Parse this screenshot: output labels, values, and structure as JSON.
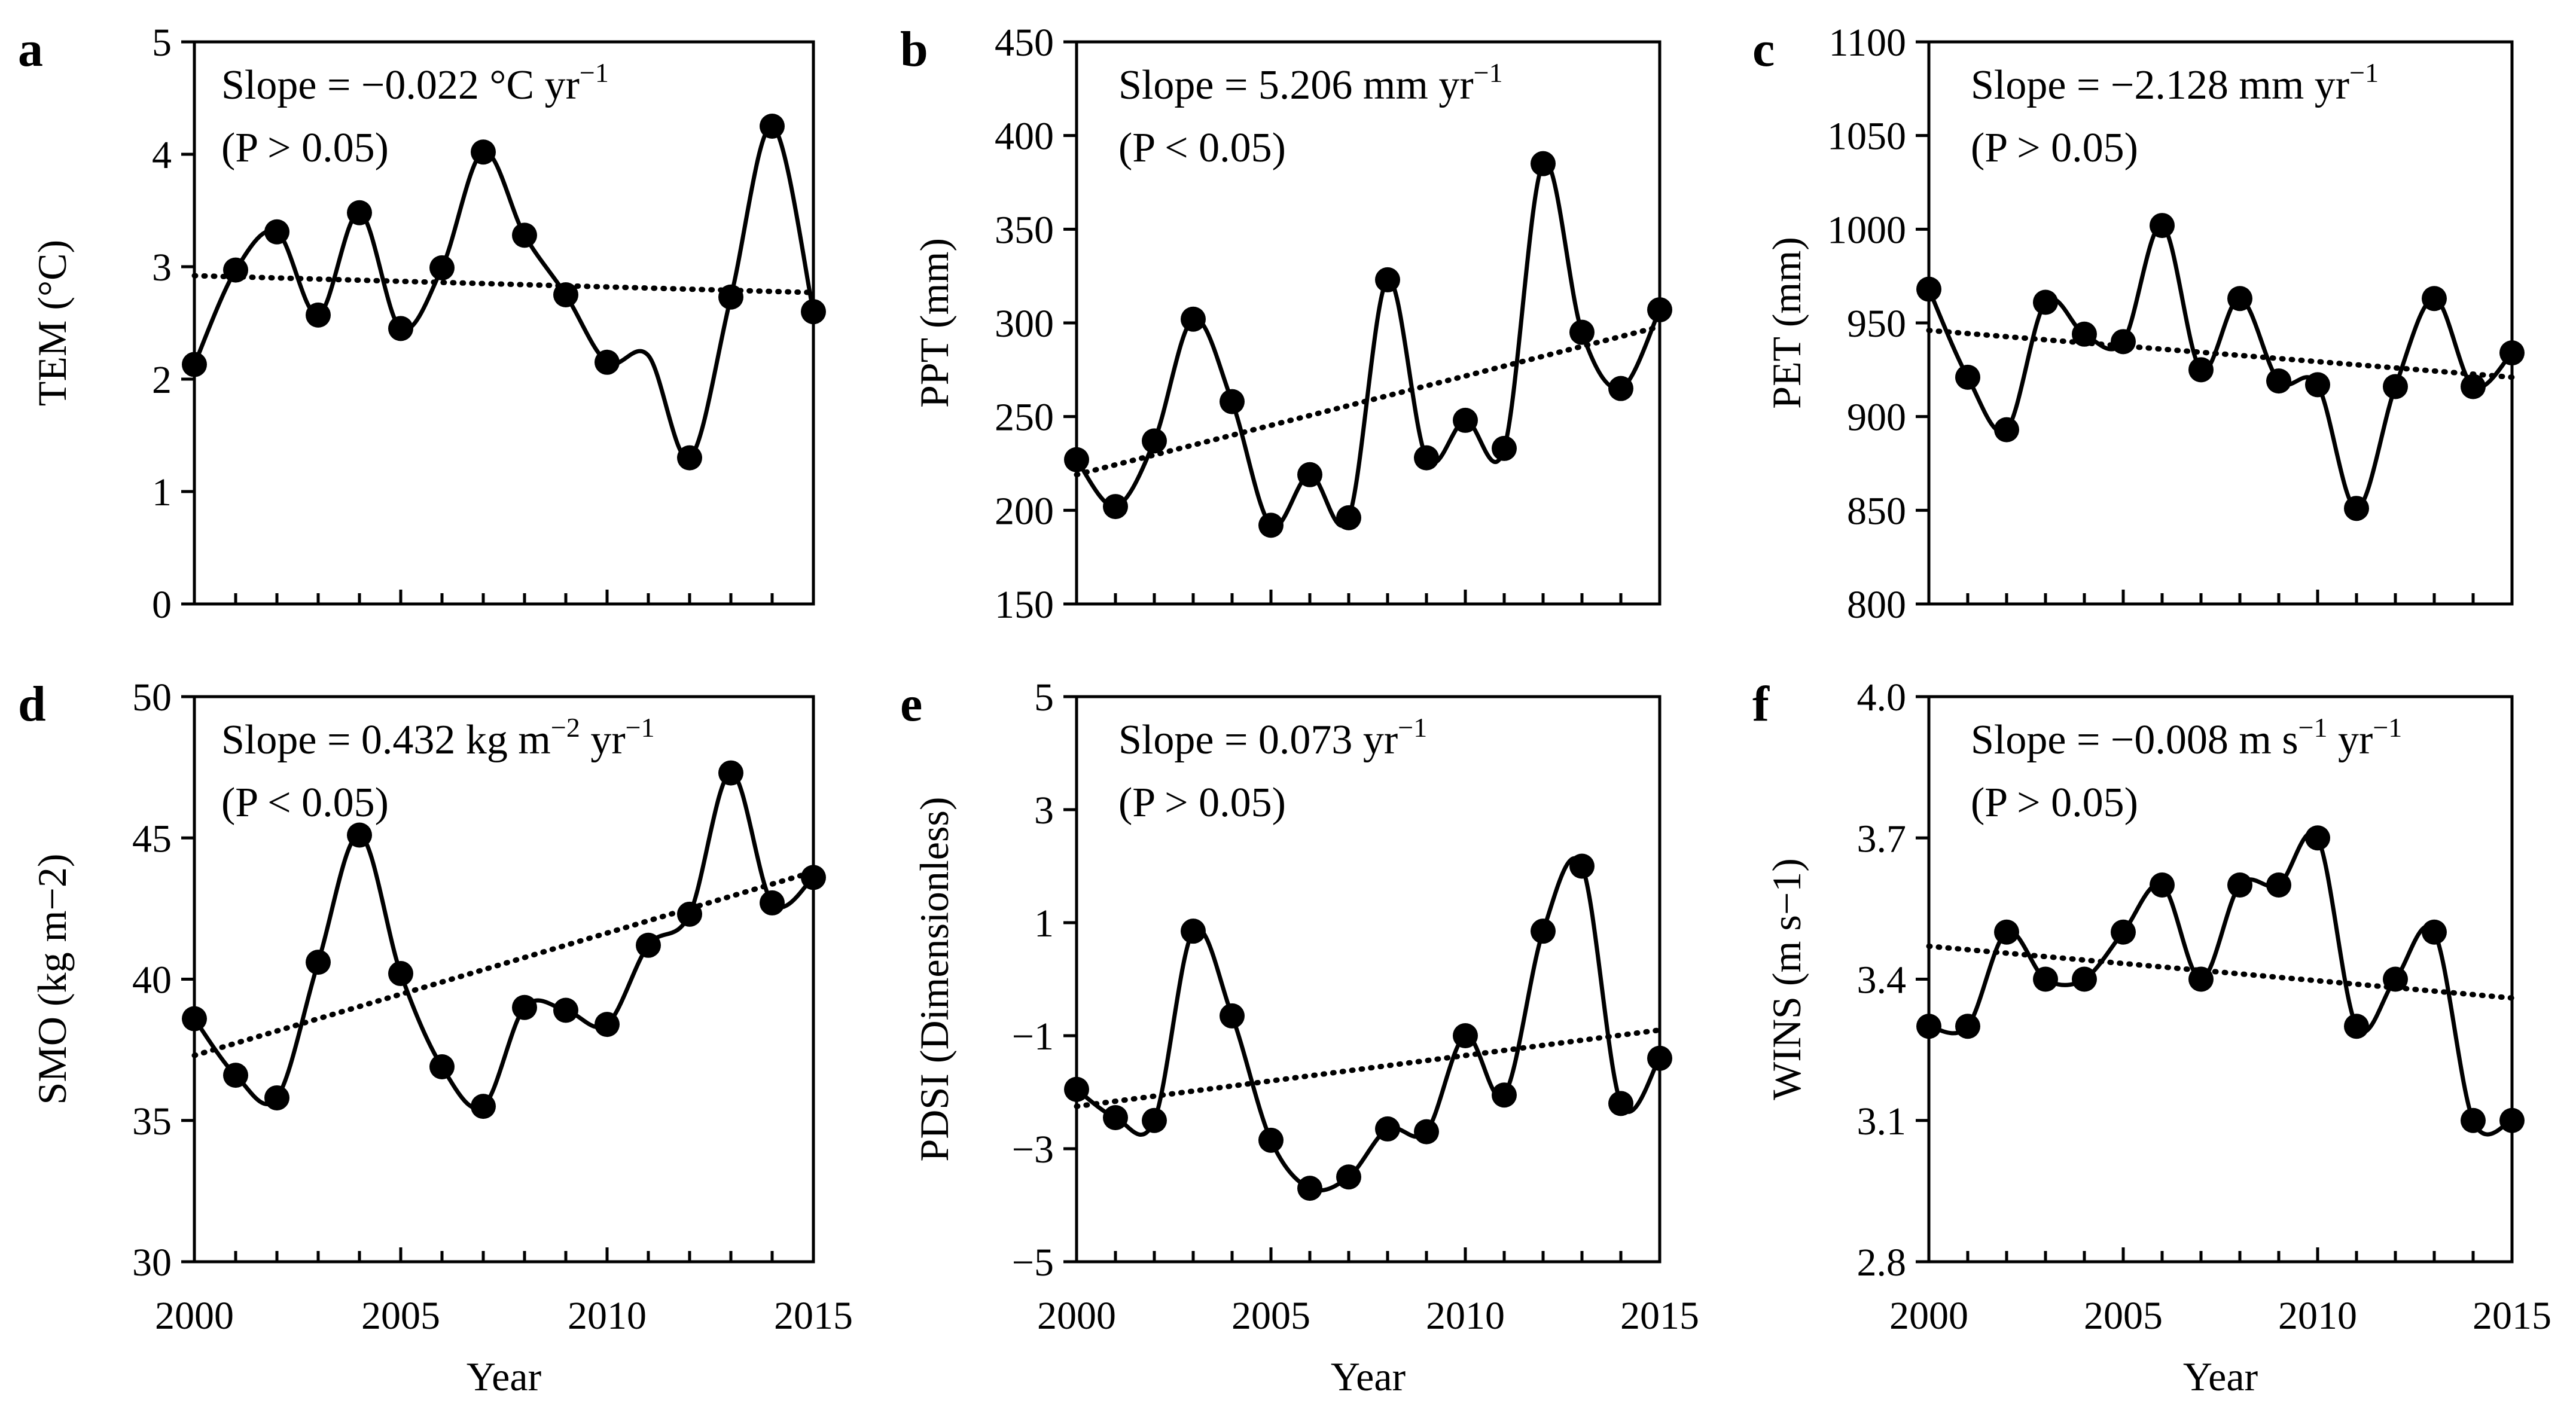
{
  "chart_data": [
    {
      "panel": "a",
      "type": "line",
      "xlabel": "",
      "ylabel": "TEM (°C)",
      "ylim": [
        0,
        5
      ],
      "yticks": [
        "0",
        "1",
        "2",
        "3",
        "4",
        "5"
      ],
      "xticks": [
        "",
        "",
        "",
        ""
      ],
      "slope_line1": "Slope = −0.022 °C yr",
      "slope_sup1": "−1",
      "slope_line2": "(P > 0.05)",
      "series": [
        {
          "name": "TEM",
          "x": [
            2000,
            2001,
            2002,
            2003,
            2004,
            2005,
            2006,
            2007,
            2008,
            2009,
            2010,
            2011,
            2012,
            2013,
            2014,
            2015
          ],
          "values": [
            2.13,
            2.97,
            3.31,
            2.57,
            3.48,
            2.45,
            2.99,
            4.02,
            3.28,
            2.75,
            2.15,
            2.21,
            1.3,
            2.73,
            4.25,
            2.6
          ]
        }
      ],
      "trend": [
        2.92,
        2.77
      ],
      "markers_skip": [
        11
      ]
    },
    {
      "panel": "b",
      "type": "line",
      "xlabel": "",
      "ylabel": "PPT (mm)",
      "ylim": [
        150,
        450
      ],
      "yticks": [
        "150",
        "200",
        "250",
        "300",
        "350",
        "400",
        "450"
      ],
      "xticks": [
        "",
        "",
        "",
        ""
      ],
      "slope_line1": "Slope = 5.206 mm yr",
      "slope_sup1": "−1",
      "slope_line2": "(P < 0.05)",
      "series": [
        {
          "name": "PPT",
          "x": [
            2000,
            2001,
            2002,
            2003,
            2004,
            2005,
            2006,
            2007,
            2008,
            2009,
            2010,
            2011,
            2012,
            2013,
            2014,
            2015
          ],
          "values": [
            227,
            202,
            237,
            302,
            258,
            192,
            219,
            196,
            323,
            228,
            248,
            233,
            385,
            295,
            265,
            307
          ]
        }
      ],
      "trend": [
        219,
        298
      ],
      "markers_skip": []
    },
    {
      "panel": "c",
      "type": "line",
      "xlabel": "",
      "ylabel": "PET (mm)",
      "ylim": [
        800,
        1100
      ],
      "yticks": [
        "800",
        "850",
        "900",
        "950",
        "1000",
        "1050",
        "1100"
      ],
      "xticks": [
        "",
        "",
        "",
        ""
      ],
      "slope_line1": "Slope = −2.128 mm yr",
      "slope_sup1": "−1",
      "slope_line2": "(P > 0.05)",
      "series": [
        {
          "name": "PET",
          "x": [
            2000,
            2001,
            2002,
            2003,
            2004,
            2005,
            2006,
            2007,
            2008,
            2009,
            2010,
            2011,
            2012,
            2013,
            2014,
            2015
          ],
          "values": [
            968,
            921,
            893,
            961,
            944,
            940,
            1002,
            925,
            963,
            919,
            917,
            851,
            916,
            963,
            916,
            934
          ]
        }
      ],
      "trend": [
        946,
        921
      ],
      "markers_skip": []
    },
    {
      "panel": "d",
      "type": "line",
      "xlabel": "Year",
      "ylabel": "SMO (kg m−2)",
      "ylim": [
        30,
        50
      ],
      "yticks": [
        "30",
        "35",
        "40",
        "45",
        "50"
      ],
      "xticks": [
        "2000",
        "2005",
        "2010",
        "2015"
      ],
      "slope_line1": "Slope = 0.432 kg m",
      "slope_sup1": "−2",
      "slope_line1b": " yr",
      "slope_sup1b": "−1",
      "slope_line2": "(P < 0.05)",
      "series": [
        {
          "name": "SMO",
          "x": [
            2000,
            2001,
            2002,
            2003,
            2004,
            2005,
            2006,
            2007,
            2008,
            2009,
            2010,
            2011,
            2012,
            2013,
            2014,
            2015
          ],
          "values": [
            38.6,
            36.6,
            35.8,
            40.6,
            45.1,
            40.2,
            36.9,
            35.5,
            39.0,
            38.9,
            38.4,
            41.2,
            42.3,
            47.3,
            42.7,
            43.6
          ]
        }
      ],
      "trend": [
        37.3,
        43.8
      ],
      "markers_skip": []
    },
    {
      "panel": "e",
      "type": "line",
      "xlabel": "Year",
      "ylabel": "PDSI (Dimensionless)",
      "ylim": [
        -5,
        5
      ],
      "yticks": [
        "−5",
        "−3",
        "−1",
        "1",
        "3",
        "5"
      ],
      "xticks": [
        "2000",
        "2005",
        "2010",
        "2015"
      ],
      "slope_line1": "Slope = 0.073 yr",
      "slope_sup1": "−1",
      "slope_line2": "(P > 0.05)",
      "series": [
        {
          "name": "PDSI",
          "x": [
            2000,
            2001,
            2002,
            2003,
            2004,
            2005,
            2006,
            2007,
            2008,
            2009,
            2010,
            2011,
            2012,
            2013,
            2014,
            2015
          ],
          "values": [
            -1.95,
            -2.45,
            -2.5,
            0.85,
            -0.65,
            -2.85,
            -3.7,
            -3.5,
            -2.65,
            -2.7,
            -1.0,
            -2.05,
            0.85,
            2.0,
            -2.2,
            -1.4
          ]
        }
      ],
      "trend": [
        -2.25,
        -0.9
      ],
      "markers_skip": []
    },
    {
      "panel": "f",
      "type": "line",
      "xlabel": "Year",
      "ylabel": "WINS (m s−1)",
      "ylim": [
        2.8,
        4.0
      ],
      "yticks": [
        "2.8",
        "3.1",
        "3.4",
        "3.7",
        "4.0"
      ],
      "xticks": [
        "2000",
        "2005",
        "2010",
        "2015"
      ],
      "slope_line1": "Slope = −0.008 m s",
      "slope_sup1": "−1",
      "slope_line1b": " yr",
      "slope_sup1b": "−1",
      "slope_line2": "(P > 0.05)",
      "series": [
        {
          "name": "WINS",
          "x": [
            2000,
            2001,
            2002,
            2003,
            2004,
            2005,
            2006,
            2007,
            2008,
            2009,
            2010,
            2011,
            2012,
            2013,
            2014,
            2015
          ],
          "values": [
            3.3,
            3.3,
            3.5,
            3.4,
            3.4,
            3.5,
            3.6,
            3.4,
            3.6,
            3.6,
            3.7,
            3.3,
            3.4,
            3.5,
            3.1,
            3.1
          ]
        }
      ],
      "trend": [
        3.47,
        3.36
      ],
      "markers_skip": []
    }
  ]
}
